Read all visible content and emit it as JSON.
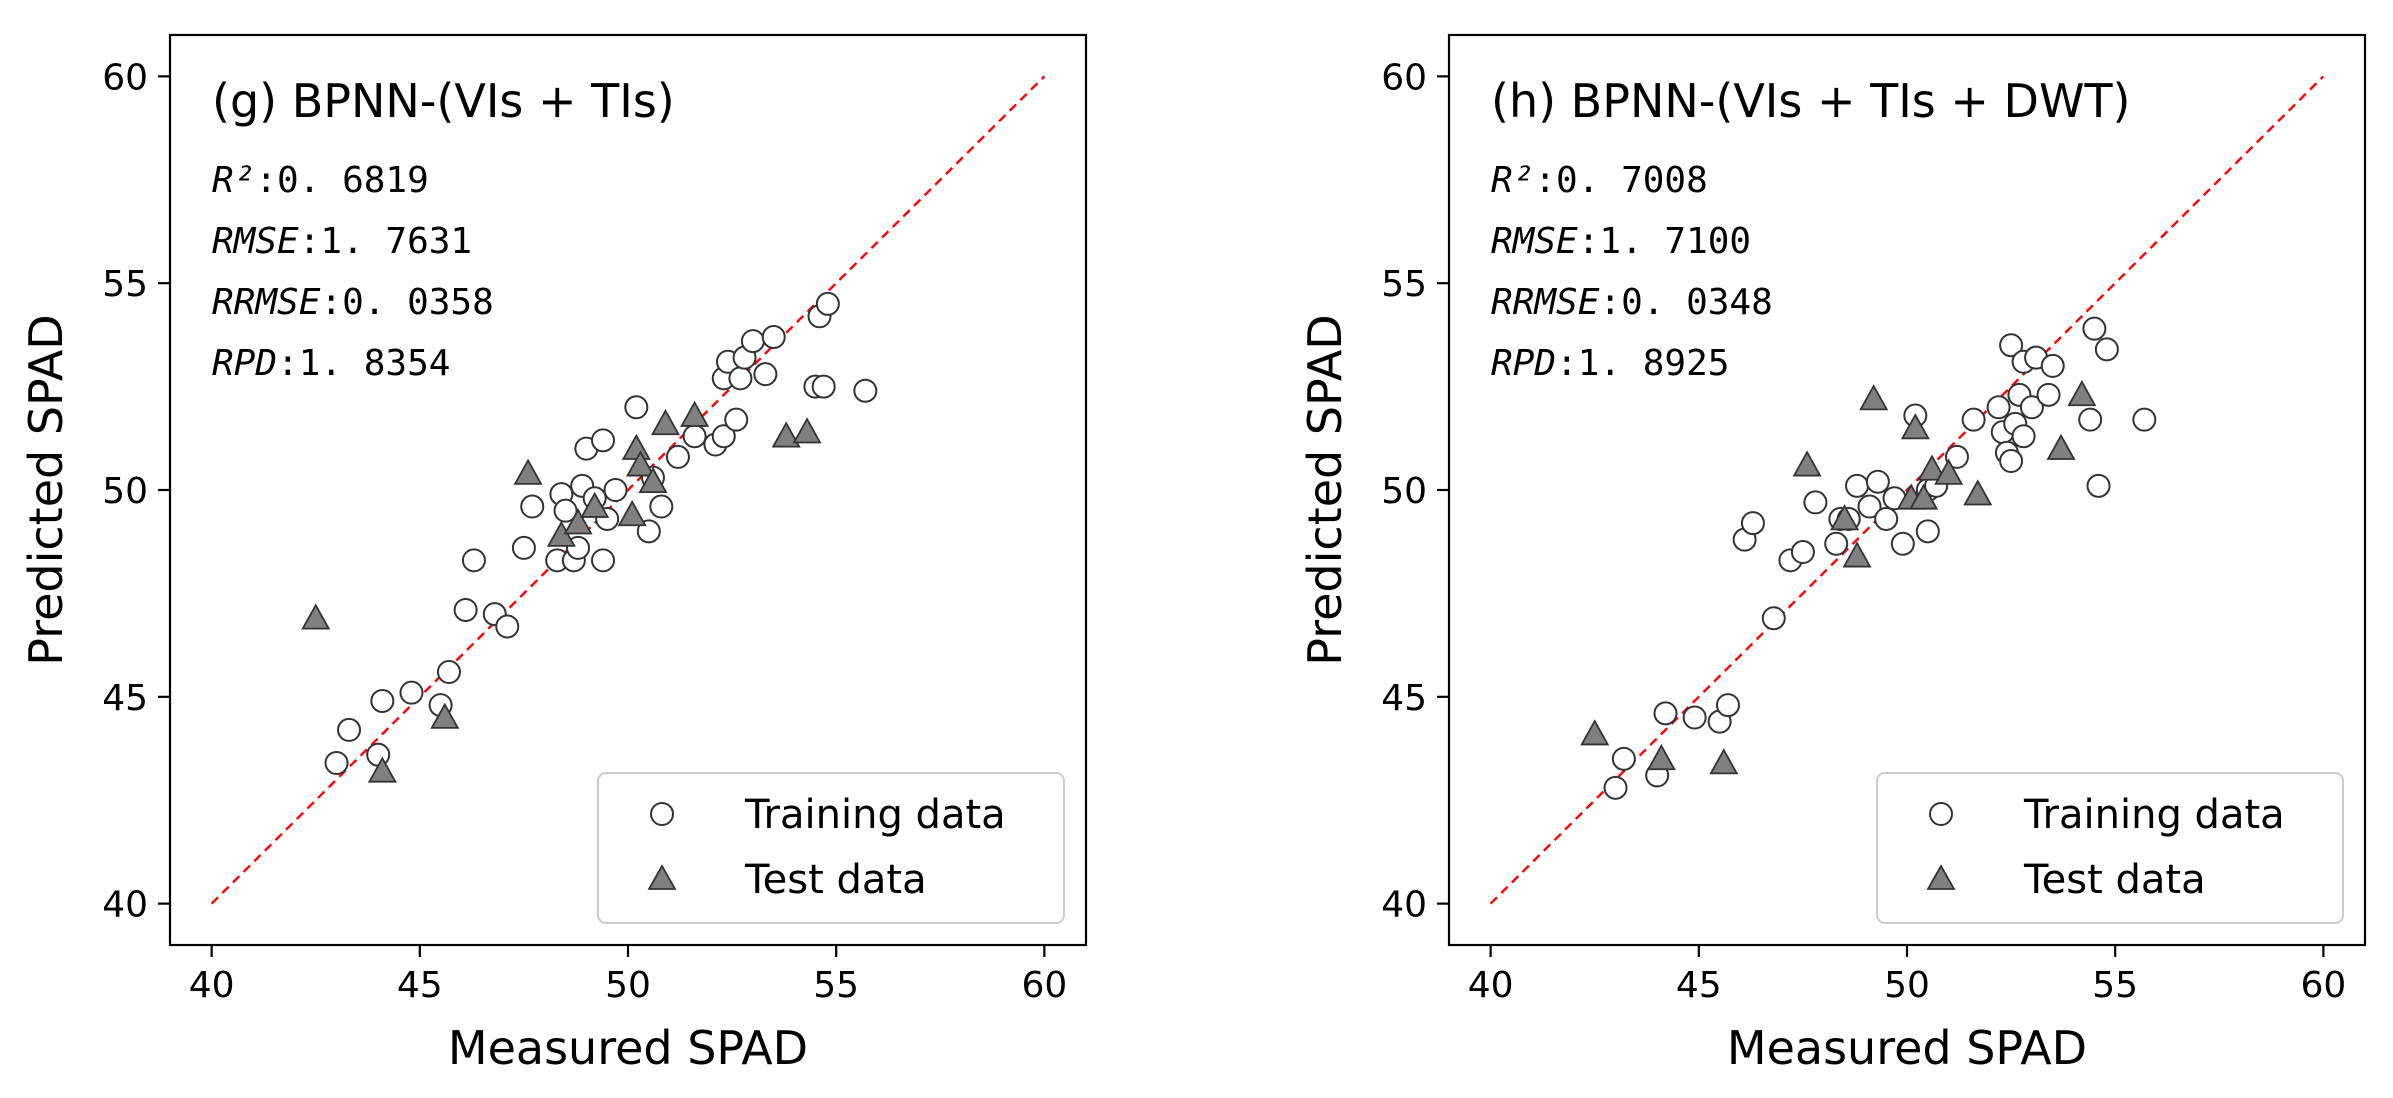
{
  "chart_data": [
    {
      "type": "scatter",
      "title": "(g) BPNN-(VIs + TIs)",
      "xlabel": "Measured SPAD",
      "ylabel": "Predicted SPAD",
      "xlim": [
        39,
        61
      ],
      "ylim": [
        39,
        61
      ],
      "xticks": [
        40,
        45,
        50,
        55,
        60
      ],
      "yticks": [
        40,
        45,
        50,
        55,
        60
      ],
      "reference_line": {
        "from": [
          40,
          40
        ],
        "to": [
          60,
          60
        ],
        "color": "#ff0000",
        "style": "dashed"
      },
      "stats": [
        {
          "key": "R²",
          "sep": ":",
          "value": "0. 6819"
        },
        {
          "key": "RMSE",
          "sep": ":",
          "value": "1. 7631"
        },
        {
          "key": "RRMSE",
          "sep": ":",
          "value": "0. 0358"
        },
        {
          "key": "RPD",
          "sep": ":",
          "value": "1. 8354"
        }
      ],
      "legend": {
        "position": "lower-right",
        "entries": [
          "Training data",
          "Test data"
        ]
      },
      "series": [
        {
          "name": "Training data",
          "marker": "circle",
          "points": [
            [
              43.0,
              43.4
            ],
            [
              43.3,
              44.2
            ],
            [
              44.0,
              43.6
            ],
            [
              44.1,
              44.9
            ],
            [
              44.8,
              45.1
            ],
            [
              45.5,
              44.8
            ],
            [
              45.7,
              45.6
            ],
            [
              46.1,
              47.1
            ],
            [
              46.3,
              48.3
            ],
            [
              46.8,
              47.0
            ],
            [
              47.1,
              46.7
            ],
            [
              47.5,
              48.6
            ],
            [
              47.7,
              49.6
            ],
            [
              48.3,
              48.3
            ],
            [
              48.4,
              49.9
            ],
            [
              48.5,
              49.5
            ],
            [
              48.7,
              48.3
            ],
            [
              48.8,
              48.6
            ],
            [
              48.9,
              50.1
            ],
            [
              49.0,
              51.0
            ],
            [
              49.2,
              49.8
            ],
            [
              49.4,
              48.3
            ],
            [
              49.4,
              51.2
            ],
            [
              49.5,
              49.3
            ],
            [
              49.7,
              50.0
            ],
            [
              50.2,
              52.0
            ],
            [
              50.5,
              49.0
            ],
            [
              50.6,
              50.3
            ],
            [
              50.8,
              49.6
            ],
            [
              51.2,
              50.8
            ],
            [
              51.6,
              51.3
            ],
            [
              52.1,
              51.1
            ],
            [
              52.3,
              51.3
            ],
            [
              52.3,
              52.7
            ],
            [
              52.4,
              53.1
            ],
            [
              52.6,
              51.7
            ],
            [
              52.7,
              52.7
            ],
            [
              52.8,
              53.2
            ],
            [
              53.0,
              53.6
            ],
            [
              53.3,
              52.8
            ],
            [
              53.5,
              53.7
            ],
            [
              54.5,
              52.5
            ],
            [
              54.6,
              54.2
            ],
            [
              54.7,
              52.5
            ],
            [
              54.8,
              54.5
            ],
            [
              55.7,
              52.4
            ]
          ]
        },
        {
          "name": "Test data",
          "marker": "triangle",
          "points": [
            [
              42.5,
              46.9
            ],
            [
              44.1,
              43.2
            ],
            [
              45.6,
              44.5
            ],
            [
              47.6,
              50.4
            ],
            [
              48.4,
              48.9
            ],
            [
              48.8,
              49.2
            ],
            [
              49.2,
              49.6
            ],
            [
              50.1,
              49.4
            ],
            [
              50.2,
              51.0
            ],
            [
              50.3,
              50.6
            ],
            [
              50.6,
              50.2
            ],
            [
              50.9,
              51.6
            ],
            [
              51.6,
              51.8
            ],
            [
              53.8,
              51.3
            ],
            [
              54.3,
              51.4
            ]
          ]
        }
      ]
    },
    {
      "type": "scatter",
      "title": "(h) BPNN-(VIs + TIs + DWT)",
      "xlabel": "Measured SPAD",
      "ylabel": "Predicted SPAD",
      "xlim": [
        39,
        61
      ],
      "ylim": [
        39,
        61
      ],
      "xticks": [
        40,
        45,
        50,
        55,
        60
      ],
      "yticks": [
        40,
        45,
        50,
        55,
        60
      ],
      "reference_line": {
        "from": [
          40,
          40
        ],
        "to": [
          60,
          60
        ],
        "color": "#ff0000",
        "style": "dashed"
      },
      "stats": [
        {
          "key": "R²",
          "sep": ":",
          "value": "0. 7008"
        },
        {
          "key": "RMSE",
          "sep": ":",
          "value": "1. 7100"
        },
        {
          "key": "RRMSE",
          "sep": ":",
          "value": "0. 0348"
        },
        {
          "key": "RPD",
          "sep": ":",
          "value": "1. 8925"
        }
      ],
      "legend": {
        "position": "lower-right",
        "entries": [
          "Training data",
          "Test data"
        ]
      },
      "series": [
        {
          "name": "Training data",
          "marker": "circle",
          "points": [
            [
              43.0,
              42.8
            ],
            [
              43.2,
              43.5
            ],
            [
              44.0,
              43.1
            ],
            [
              44.2,
              44.6
            ],
            [
              44.9,
              44.5
            ],
            [
              45.5,
              44.4
            ],
            [
              45.7,
              44.8
            ],
            [
              46.1,
              48.8
            ],
            [
              46.3,
              49.2
            ],
            [
              46.8,
              46.9
            ],
            [
              47.2,
              48.3
            ],
            [
              47.5,
              48.5
            ],
            [
              47.8,
              49.7
            ],
            [
              48.3,
              48.7
            ],
            [
              48.4,
              49.3
            ],
            [
              48.6,
              49.3
            ],
            [
              48.8,
              50.1
            ],
            [
              49.1,
              49.6
            ],
            [
              49.3,
              50.2
            ],
            [
              49.5,
              49.3
            ],
            [
              49.7,
              49.8
            ],
            [
              49.9,
              48.7
            ],
            [
              50.2,
              51.8
            ],
            [
              50.5,
              50.0
            ],
            [
              50.5,
              49.0
            ],
            [
              50.7,
              50.1
            ],
            [
              51.2,
              50.8
            ],
            [
              51.6,
              51.7
            ],
            [
              52.2,
              52.0
            ],
            [
              52.3,
              51.4
            ],
            [
              52.4,
              50.9
            ],
            [
              52.5,
              53.5
            ],
            [
              52.5,
              50.7
            ],
            [
              52.6,
              51.6
            ],
            [
              52.7,
              52.3
            ],
            [
              52.8,
              53.1
            ],
            [
              52.8,
              51.3
            ],
            [
              53.0,
              52.0
            ],
            [
              53.1,
              53.2
            ],
            [
              53.4,
              52.3
            ],
            [
              53.5,
              53.0
            ],
            [
              54.4,
              51.7
            ],
            [
              54.5,
              53.9
            ],
            [
              54.6,
              50.1
            ],
            [
              54.8,
              53.4
            ],
            [
              55.7,
              51.7
            ]
          ]
        },
        {
          "name": "Test data",
          "marker": "triangle",
          "points": [
            [
              42.5,
              44.1
            ],
            [
              44.1,
              43.5
            ],
            [
              45.6,
              43.4
            ],
            [
              47.6,
              50.6
            ],
            [
              48.5,
              49.3
            ],
            [
              48.8,
              48.4
            ],
            [
              49.2,
              52.2
            ],
            [
              50.1,
              49.8
            ],
            [
              50.2,
              51.5
            ],
            [
              50.4,
              49.8
            ],
            [
              50.6,
              50.5
            ],
            [
              51.0,
              50.4
            ],
            [
              51.7,
              49.9
            ],
            [
              53.7,
              51.0
            ],
            [
              54.2,
              52.3
            ]
          ]
        }
      ]
    }
  ]
}
